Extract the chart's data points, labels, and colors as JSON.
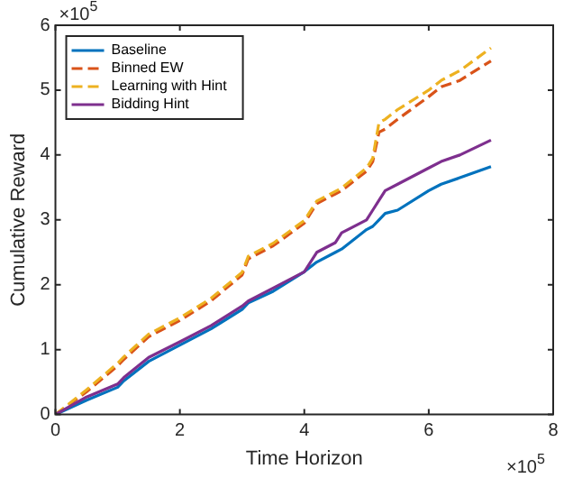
{
  "chart_data": {
    "type": "line",
    "xlabel": "Time Horizon",
    "ylabel": "Cumulative Reward",
    "annotations": [
      "×10$^{5}$",
      "×10$^{5}$"
    ],
    "xlim": [
      0,
      8
    ],
    "xticks": [
      0,
      2,
      4,
      6,
      8
    ],
    "ylim": [
      0,
      6
    ],
    "yticks": [
      0,
      1,
      2,
      3,
      4,
      5,
      6
    ],
    "grid": false,
    "legend": "top left",
    "marker": "none",
    "x": [
      0,
      0.5,
      1,
      1.1,
      1.5,
      2,
      2.5,
      3,
      3.1,
      3.5,
      4,
      4.2,
      4.5,
      4.6,
      5,
      5.1,
      5.2,
      5.3,
      5.5,
      6,
      6.2,
      6.5,
      7
    ],
    "series": [
      {
        "name": "Baseline",
        "color": "#0072bd",
        "line_style": "solid",
        "values": [
          0,
          0.22,
          0.42,
          0.52,
          0.82,
          1.07,
          1.32,
          1.62,
          1.72,
          1.9,
          2.2,
          2.35,
          2.5,
          2.55,
          2.85,
          2.9,
          3.0,
          3.1,
          3.15,
          3.45,
          3.55,
          3.65,
          3.82
        ]
      },
      {
        "name": "Binned EW",
        "color": "#d95319",
        "line_style": "dashed",
        "values": [
          0,
          0.35,
          0.75,
          0.85,
          1.2,
          1.45,
          1.75,
          2.15,
          2.4,
          2.6,
          2.95,
          3.25,
          3.4,
          3.45,
          3.75,
          3.9,
          4.35,
          4.4,
          4.55,
          4.9,
          5.05,
          5.15,
          5.45
        ]
      },
      {
        "name": "Learning with Hint",
        "color": "#edb120",
        "line_style": "dashed",
        "values": [
          0,
          0.38,
          0.79,
          0.89,
          1.24,
          1.49,
          1.79,
          2.19,
          2.44,
          2.64,
          2.99,
          3.29,
          3.44,
          3.49,
          3.8,
          3.95,
          4.5,
          4.55,
          4.7,
          5.0,
          5.15,
          5.3,
          5.65
        ]
      },
      {
        "name": "Bidding Hint",
        "color": "#7e2f8e",
        "line_style": "solid",
        "values": [
          0,
          0.27,
          0.47,
          0.57,
          0.88,
          1.12,
          1.37,
          1.67,
          1.75,
          1.95,
          2.2,
          2.5,
          2.65,
          2.8,
          3.0,
          3.15,
          3.3,
          3.45,
          3.55,
          3.8,
          3.9,
          4.0,
          4.23
        ]
      }
    ]
  }
}
